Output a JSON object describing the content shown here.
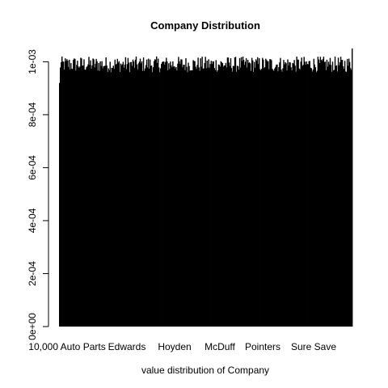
{
  "chart_data": {
    "type": "bar",
    "title": "Company Distribution",
    "xlabel": "value distribution of Company",
    "ylabel": "",
    "ylim": [
      0,
      0.00105
    ],
    "y_ticks": [
      {
        "value": 0,
        "label": "0e+00"
      },
      {
        "value": 0.0002,
        "label": "2e-04"
      },
      {
        "value": 0.0004,
        "label": "4e-04"
      },
      {
        "value": 0.0006,
        "label": "6e-04"
      },
      {
        "value": 0.0008,
        "label": "8e-04"
      },
      {
        "value": 0.001,
        "label": "1e-03"
      }
    ],
    "x_tick_labels": [
      "10,000 Auto Parts",
      "Edwards",
      "Hoyden",
      "McDuff",
      "Pointers",
      "Sure Save"
    ],
    "bar_count": 360,
    "value_summary": {
      "typical": 0.00099,
      "min": 0.00092,
      "max": 0.00105
    },
    "bar_color": "#000000",
    "grid": false,
    "legend": "none"
  }
}
